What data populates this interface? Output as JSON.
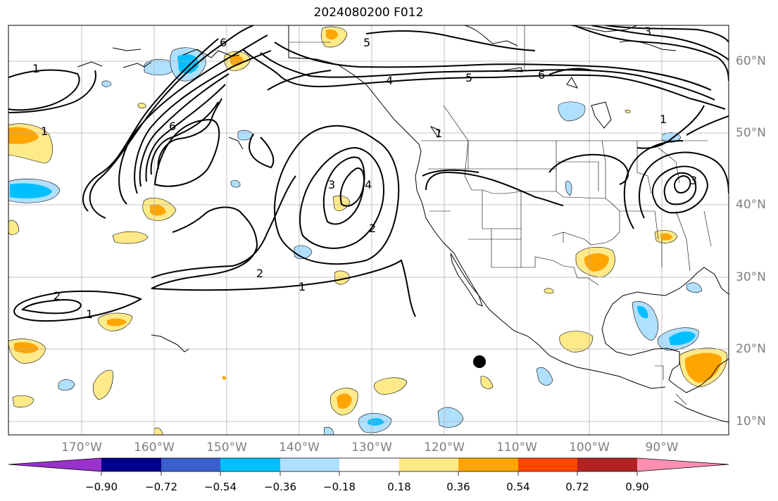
{
  "title": "2024080200 F012",
  "lat_labels": [
    "60°N",
    "50°N",
    "40°N",
    "30°N",
    "20°N",
    "10°N"
  ],
  "lon_labels": [
    "170°W",
    "160°W",
    "150°W",
    "140°W",
    "130°W",
    "120°W",
    "110°W",
    "100°W",
    "90°W"
  ],
  "contour_labels": [
    "1",
    "1",
    "1",
    "1",
    "1",
    "1",
    "2",
    "2",
    "2",
    "3",
    "3",
    "3",
    "4",
    "4",
    "5",
    "5",
    "6",
    "6",
    "6"
  ],
  "colorbar": {
    "colors": [
      "#9932cc",
      "#00008b",
      "#3b5fcd",
      "#00bfff",
      "#b0e0ff",
      "#ffffff",
      "#ffea8a",
      "#ffa500",
      "#ff4500",
      "#b22222",
      "#ff8fb0"
    ],
    "tick_labels": [
      "−0.90",
      "−0.72",
      "−0.54",
      "−0.36",
      "−0.18",
      "0.18",
      "0.36",
      "0.54",
      "0.72",
      "0.90"
    ]
  },
  "marker": "storm-location-dot"
}
